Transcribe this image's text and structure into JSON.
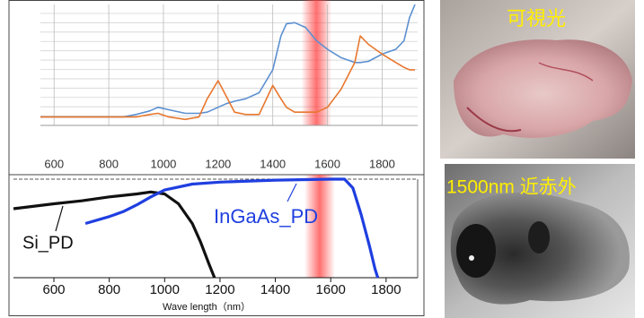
{
  "chart_data": [
    {
      "type": "line",
      "x": [
        550,
        700,
        850,
        900,
        950,
        980,
        1020,
        1080,
        1130,
        1160,
        1200,
        1230,
        1260,
        1300,
        1350,
        1400,
        1430,
        1450,
        1480,
        1520,
        1560,
        1600,
        1650,
        1700,
        1720,
        1750,
        1800,
        1850,
        1880,
        1900,
        1920
      ],
      "series": [
        {
          "color": "#5b8fd0",
          "values": [
            0.07,
            0.07,
            0.07,
            0.09,
            0.12,
            0.15,
            0.13,
            0.1,
            0.1,
            0.11,
            0.15,
            0.18,
            0.2,
            0.22,
            0.27,
            0.46,
            0.74,
            0.84,
            0.85,
            0.81,
            0.7,
            0.63,
            0.56,
            0.52,
            0.52,
            0.53,
            0.59,
            0.63,
            0.7,
            0.89,
            1.0
          ]
        },
        {
          "color": "#e8772e",
          "values": [
            0.07,
            0.07,
            0.07,
            0.07,
            0.09,
            0.1,
            0.07,
            0.05,
            0.07,
            0.22,
            0.37,
            0.24,
            0.11,
            0.09,
            0.09,
            0.33,
            0.22,
            0.15,
            0.11,
            0.11,
            0.11,
            0.15,
            0.3,
            0.52,
            0.74,
            0.67,
            0.59,
            0.52,
            0.48,
            0.46,
            0.46
          ]
        }
      ],
      "xlim": [
        550,
        1930
      ],
      "ylim": [
        0,
        1
      ],
      "xticks": [
        600,
        800,
        1000,
        1200,
        1400,
        1600,
        1800
      ],
      "grid": true,
      "band": [
        1505,
        1615
      ],
      "band_color": "#ff4040"
    },
    {
      "type": "line",
      "x_label": "Wave length（nm）",
      "series": [
        {
          "name": "Si_PD",
          "color": "#111111",
          "x": [
            454,
            600,
            700,
            800,
            900,
            950,
            1000,
            1050,
            1100,
            1130,
            1160,
            1180
          ],
          "values": [
            0.7,
            0.75,
            0.78,
            0.82,
            0.85,
            0.87,
            0.85,
            0.75,
            0.55,
            0.36,
            0.14,
            0.0
          ]
        },
        {
          "name": "InGaAs_PD",
          "color": "#1f3fe0",
          "x": [
            714,
            800,
            850,
            900,
            950,
            1000,
            1100,
            1200,
            1400,
            1600,
            1650,
            1680,
            1710,
            1740,
            1760,
            1770
          ],
          "values": [
            0.55,
            0.62,
            0.67,
            0.74,
            0.82,
            0.89,
            0.95,
            0.97,
            0.99,
            1.0,
            1.0,
            0.91,
            0.64,
            0.32,
            0.09,
            0.0
          ]
        }
      ],
      "xlim": [
        454,
        1914
      ],
      "ylim": [
        0,
        1
      ],
      "xticks": [
        600,
        800,
        1000,
        1200,
        1400,
        1600,
        1800
      ],
      "grid": false,
      "band": [
        1505,
        1615
      ],
      "band_color": "#ff4040"
    }
  ],
  "photos": [
    {
      "label": "可視光"
    },
    {
      "label": "1500nm 近赤外"
    }
  ]
}
